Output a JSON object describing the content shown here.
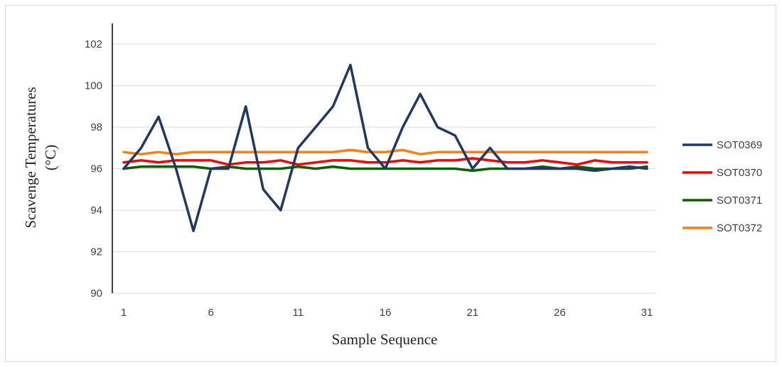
{
  "chart_data": {
    "type": "line",
    "title": "",
    "xlabel": "Sample Sequence",
    "ylabel_line1": "Scavenge Temperatures",
    "ylabel_line2": "(°C)",
    "ylim": [
      90,
      103
    ],
    "yticks": [
      90,
      92,
      94,
      96,
      98,
      100,
      102
    ],
    "xlim": [
      1,
      31
    ],
    "xticks": [
      1,
      6,
      11,
      16,
      21,
      26,
      31
    ],
    "grid": "horizontal",
    "legend_position": "right",
    "x": [
      1,
      2,
      3,
      4,
      5,
      6,
      7,
      8,
      9,
      10,
      11,
      12,
      13,
      14,
      15,
      16,
      17,
      18,
      19,
      20,
      21,
      22,
      23,
      24,
      25,
      26,
      27,
      28,
      29,
      30,
      31
    ],
    "series": [
      {
        "name": "SOT0369",
        "color": "#1f3864",
        "values": [
          96.0,
          97.0,
          98.5,
          96.0,
          93.0,
          96.0,
          96.0,
          99.0,
          95.0,
          94.0,
          97.0,
          98.0,
          99.0,
          101.0,
          97.0,
          96.0,
          98.0,
          99.6,
          98.0,
          97.6,
          96.0,
          97.0,
          96.0,
          96.0,
          96.0,
          96.0,
          96.0,
          95.9,
          96.0,
          96.1,
          96.0
        ]
      },
      {
        "name": "SOT0370",
        "color": "#ff0000",
        "values": [
          96.3,
          96.4,
          96.3,
          96.4,
          96.4,
          96.4,
          96.2,
          96.3,
          96.3,
          96.4,
          96.2,
          96.3,
          96.4,
          96.4,
          96.3,
          96.3,
          96.4,
          96.3,
          96.4,
          96.4,
          96.5,
          96.4,
          96.3,
          96.3,
          96.4,
          96.3,
          96.2,
          96.4,
          96.3,
          96.3,
          96.3
        ]
      },
      {
        "name": "SOT0371",
        "color": "#0b5f00",
        "values": [
          96.0,
          96.1,
          96.1,
          96.1,
          96.1,
          96.0,
          96.1,
          96.0,
          96.0,
          96.0,
          96.1,
          96.0,
          96.1,
          96.0,
          96.0,
          96.0,
          96.0,
          96.0,
          96.0,
          96.0,
          95.9,
          96.0,
          96.0,
          96.0,
          96.1,
          96.0,
          96.1,
          96.0,
          96.0,
          96.0,
          96.1
        ]
      },
      {
        "name": "SOT0372",
        "color": "#ff7f0e",
        "values": [
          96.8,
          96.7,
          96.8,
          96.7,
          96.8,
          96.8,
          96.8,
          96.8,
          96.8,
          96.8,
          96.8,
          96.8,
          96.8,
          96.9,
          96.8,
          96.8,
          96.9,
          96.7,
          96.8,
          96.8,
          96.8,
          96.8,
          96.8,
          96.8,
          96.8,
          96.8,
          96.8,
          96.8,
          96.8,
          96.8,
          96.8
        ]
      }
    ]
  }
}
